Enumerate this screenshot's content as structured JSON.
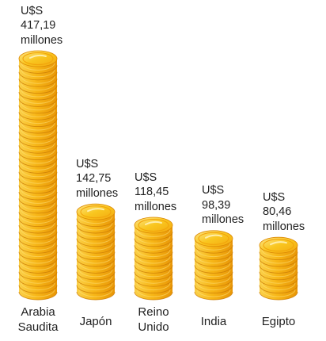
{
  "chart_data": {
    "type": "bar",
    "style": "coin-stacks",
    "colors": {
      "coin_face": "#f9c11a",
      "coin_edge": "#f2a40c",
      "coin_light": "#fde27a",
      "coin_shadow": "#dd8a05",
      "rim_line": "#c97a04"
    },
    "categories": [
      {
        "line1": "Arabia",
        "line2": "Saudita"
      },
      {
        "line1": "Japón",
        "line2": ""
      },
      {
        "line1": "Reino",
        "line2": "Unido"
      },
      {
        "line1": "India",
        "line2": ""
      },
      {
        "line1": "Egipto",
        "line2": ""
      }
    ],
    "values": [
      417.19,
      142.75,
      118.45,
      98.39,
      80.46
    ],
    "value_labels": [
      {
        "l1": "U$S",
        "l2": "417,19",
        "l3": "millones"
      },
      {
        "l1": "U$S",
        "l2": "142,75",
        "l3": "millones"
      },
      {
        "l1": "U$S",
        "l2": "118,45",
        "l3": "millones"
      },
      {
        "l1": "U$S",
        "l2": "98,39",
        "l3": "millones"
      },
      {
        "l1": "U$S",
        "l2": "80,46",
        "l3": "millones"
      }
    ]
  }
}
